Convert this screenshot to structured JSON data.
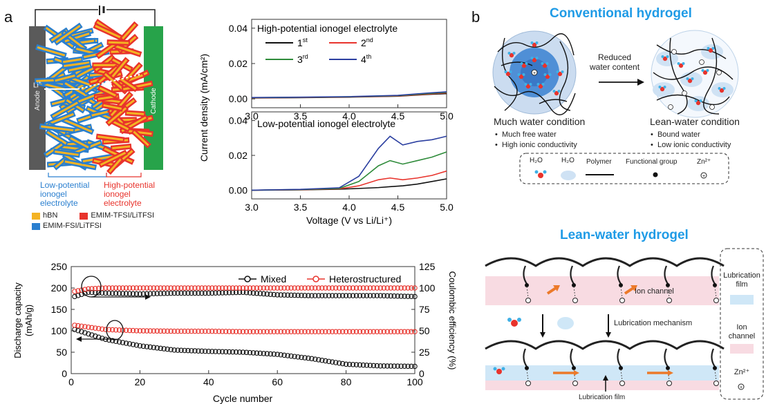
{
  "panel_a": {
    "letter": "a",
    "battery": {
      "anode_label": "Anode",
      "cathode_label": "Cathode",
      "ion_label": "Li",
      "ion_charge": "+",
      "low_label_lines": [
        "Low-potential",
        "ionogel",
        "electrolyte"
      ],
      "high_label_lines": [
        "High-potential",
        "ionogel",
        "electrolyte"
      ],
      "legend": [
        {
          "label": "hBN",
          "color": "#f4b323"
        },
        {
          "label": "EMIM-TFSI/LiTFSI",
          "color": "#e8332c"
        },
        {
          "label": "EMIM-FSI/LiTFSI",
          "color": "#2a7fcf"
        }
      ]
    },
    "lsv_chart": {
      "ylabel": "Current density (mA/cm²)",
      "xlabel": "Voltage (V vs Li/Li⁺)",
      "x_ticks": [
        "3.0",
        "3.5",
        "4.0",
        "4.5",
        "5.0"
      ],
      "top_title": "High-potential ionogel electrolyte",
      "bottom_title": "Low-potential ionogel electrolyte",
      "top_y_ticks": [
        "0.04",
        "0.02",
        "0.00"
      ],
      "bottom_y_ticks": [
        "0.04",
        "0.02",
        "0.00"
      ],
      "legend": [
        {
          "base": "1",
          "sup": "st",
          "color": "#111111"
        },
        {
          "base": "2",
          "sup": "nd",
          "color": "#e8332c"
        },
        {
          "base": "3",
          "sup": "rd",
          "color": "#2e8b3a"
        },
        {
          "base": "4",
          "sup": "th",
          "color": "#2b3fa0"
        }
      ]
    },
    "cycle_chart": {
      "ylabel_left_lines": [
        "Discharge capacity",
        "(mAh/g)"
      ],
      "ylabel_right": "Coulombic efficiency (%)",
      "xlabel": "Cycle number",
      "x_ticks": [
        "0",
        "20",
        "40",
        "60",
        "80",
        "100"
      ],
      "y_left_ticks": [
        "250",
        "200",
        "150",
        "100",
        "50",
        "0"
      ],
      "y_right_ticks": [
        "125",
        "100",
        "75",
        "50",
        "25",
        "0"
      ],
      "legend": [
        {
          "label": "Mixed",
          "color": "#111111"
        },
        {
          "label": "Heterostructured",
          "color": "#e8332c"
        }
      ]
    }
  },
  "chart_data": [
    {
      "type": "line",
      "title": "High-potential ionogel electrolyte",
      "xlabel": "Voltage (V vs Li/Li⁺)",
      "ylabel": "Current density (mA/cm²)",
      "xlim": [
        3.0,
        5.0
      ],
      "ylim": [
        -0.005,
        0.045
      ],
      "x": [
        3.0,
        3.5,
        4.0,
        4.5,
        4.8,
        5.0
      ],
      "series": [
        {
          "name": "1st",
          "values": [
            0.0005,
            0.0007,
            0.001,
            0.0015,
            0.0025,
            0.003
          ]
        },
        {
          "name": "2nd",
          "values": [
            0.0006,
            0.0008,
            0.0011,
            0.0016,
            0.0027,
            0.0034
          ]
        },
        {
          "name": "3rd",
          "values": [
            0.0007,
            0.0009,
            0.0012,
            0.0018,
            0.003,
            0.0037
          ]
        },
        {
          "name": "4th",
          "values": [
            0.0008,
            0.001,
            0.0013,
            0.002,
            0.0033,
            0.004
          ]
        }
      ]
    },
    {
      "type": "line",
      "title": "Low-potential ionogel electrolyte",
      "xlabel": "Voltage (V vs Li/Li⁺)",
      "ylabel": "Current density (mA/cm²)",
      "xlim": [
        3.0,
        5.0
      ],
      "ylim": [
        -0.005,
        0.045
      ],
      "x": [
        3.0,
        3.5,
        3.9,
        4.1,
        4.3,
        4.42,
        4.55,
        4.7,
        4.85,
        5.0
      ],
      "series": [
        {
          "name": "1st",
          "values": [
            0.0,
            0.0002,
            0.0006,
            0.001,
            0.0015,
            0.002,
            0.0025,
            0.0035,
            0.005,
            0.0065
          ]
        },
        {
          "name": "2nd",
          "values": [
            0.0,
            0.0003,
            0.0008,
            0.0025,
            0.006,
            0.007,
            0.006,
            0.007,
            0.0085,
            0.011
          ]
        },
        {
          "name": "3rd",
          "values": [
            0.0,
            0.0004,
            0.001,
            0.005,
            0.014,
            0.017,
            0.015,
            0.017,
            0.019,
            0.022
          ]
        },
        {
          "name": "4th",
          "values": [
            0.0,
            0.0005,
            0.0014,
            0.008,
            0.024,
            0.031,
            0.026,
            0.028,
            0.029,
            0.031
          ]
        }
      ]
    },
    {
      "type": "scatter",
      "xlabel": "Cycle number",
      "ylabel": "Discharge capacity (mAh/g)",
      "ylabel_right": "Coulombic efficiency (%)",
      "xlim": [
        0,
        100
      ],
      "ylim": [
        0,
        250
      ],
      "ylim_right": [
        0,
        125
      ],
      "series": [
        {
          "name": "Mixed",
          "axis": "left",
          "x": [
            1,
            10,
            20,
            30,
            40,
            50,
            60,
            70,
            80,
            90,
            100
          ],
          "values": [
            103,
            80,
            65,
            55,
            52,
            50,
            45,
            35,
            22,
            18,
            17
          ]
        },
        {
          "name": "Heterostructured",
          "axis": "left",
          "x": [
            1,
            10,
            20,
            30,
            40,
            50,
            60,
            70,
            80,
            90,
            100
          ],
          "values": [
            113,
            103,
            100,
            99,
            99,
            98,
            98,
            98,
            98,
            98,
            98
          ]
        },
        {
          "name": "Mixed",
          "axis": "right",
          "x": [
            1,
            5,
            10,
            20,
            30,
            40,
            50,
            60,
            70,
            80,
            90,
            100
          ],
          "values": [
            90,
            95,
            94,
            93,
            94,
            94,
            95,
            92,
            91,
            91,
            91,
            90
          ]
        },
        {
          "name": "Heterostructured",
          "axis": "right",
          "x": [
            1,
            5,
            10,
            20,
            30,
            40,
            50,
            60,
            70,
            80,
            90,
            100
          ],
          "values": [
            96,
            99,
            100,
            100,
            100,
            100,
            100,
            100,
            100,
            100,
            100,
            100
          ]
        }
      ]
    }
  ],
  "panel_b": {
    "letter": "b",
    "conventional_title": "Conventional hydrogel",
    "arrow_label_lines": [
      "Reduced",
      "water content"
    ],
    "much_water": {
      "title": "Much water condition",
      "bullets": [
        "Much free water",
        "High ionic conductivity"
      ]
    },
    "lean_water": {
      "title": "Lean-water condition",
      "bullets": [
        "Bound water",
        "Low ionic conductivity"
      ]
    },
    "legend": {
      "h2o_a": "H₂O",
      "h2o_b": "H₂O",
      "polymer": "Polymer",
      "functional_group": "Functional group",
      "zinc": "Zn²⁺"
    },
    "lean_title": "Lean-water hydrogel",
    "ion_channel_label": "Ion channel",
    "mechanism_label": "Lubrication mechanism",
    "lubrication_film_label": "Lubrication film",
    "side_legend": {
      "film_lines": [
        "Lubrication",
        "film"
      ],
      "channel_lines": [
        "Ion",
        "channel"
      ],
      "zinc": "Zn²⁺"
    },
    "colors": {
      "title_blue": "#1f9be6",
      "film_blue": "#cfe7f7",
      "channel_pink": "#f8dbe2",
      "accent_orange": "#ec7a2a"
    }
  }
}
